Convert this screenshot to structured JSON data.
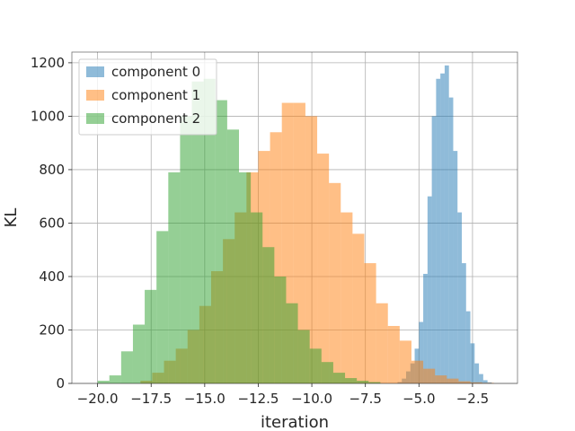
{
  "chart_data": {
    "type": "bar",
    "title": "",
    "xlabel": "iteration",
    "ylabel": "KL",
    "xlim": [
      -21.2,
      -0.4
    ],
    "ylim": [
      0,
      1240
    ],
    "x_ticks": [
      -20.0,
      -17.5,
      -15.0,
      -12.5,
      -10.0,
      -7.5,
      -5.0,
      -2.5
    ],
    "x_tick_labels": [
      "−20.0",
      "−17.5",
      "−15.0",
      "−12.5",
      "−10.0",
      "−7.5",
      "−5.0",
      "−2.5"
    ],
    "y_ticks": [
      0,
      200,
      400,
      600,
      800,
      1000,
      1200
    ],
    "y_tick_labels": [
      "0",
      "200",
      "400",
      "600",
      "800",
      "1000",
      "1200"
    ],
    "grid": true,
    "legend_position": "top-left",
    "series": [
      {
        "name": "component 0",
        "color": "#1f77b4",
        "opacity": 0.5,
        "bin_start": -6.0,
        "bin_width": 0.2,
        "counts": [
          5,
          18,
          45,
          75,
          130,
          230,
          410,
          700,
          1000,
          1140,
          1160,
          1190,
          1070,
          870,
          640,
          450,
          270,
          150,
          75,
          35,
          12,
          4
        ]
      },
      {
        "name": "component 1",
        "color": "#ff7f0e",
        "opacity": 0.5,
        "bin_start": -18.0,
        "bin_width": 0.55,
        "counts": [
          10,
          40,
          85,
          130,
          200,
          290,
          420,
          540,
          640,
          790,
          870,
          940,
          1050,
          1050,
          1000,
          860,
          750,
          640,
          560,
          450,
          300,
          215,
          160,
          85,
          55,
          30,
          18,
          8,
          4,
          2
        ]
      },
      {
        "name": "component 2",
        "color": "#2ca02c",
        "opacity": 0.5,
        "bin_start": -20.0,
        "bin_width": 0.55,
        "counts": [
          10,
          30,
          120,
          220,
          350,
          570,
          790,
          1000,
          1130,
          1140,
          1060,
          950,
          790,
          640,
          510,
          400,
          300,
          200,
          130,
          80,
          40,
          20,
          10,
          5
        ]
      }
    ]
  }
}
